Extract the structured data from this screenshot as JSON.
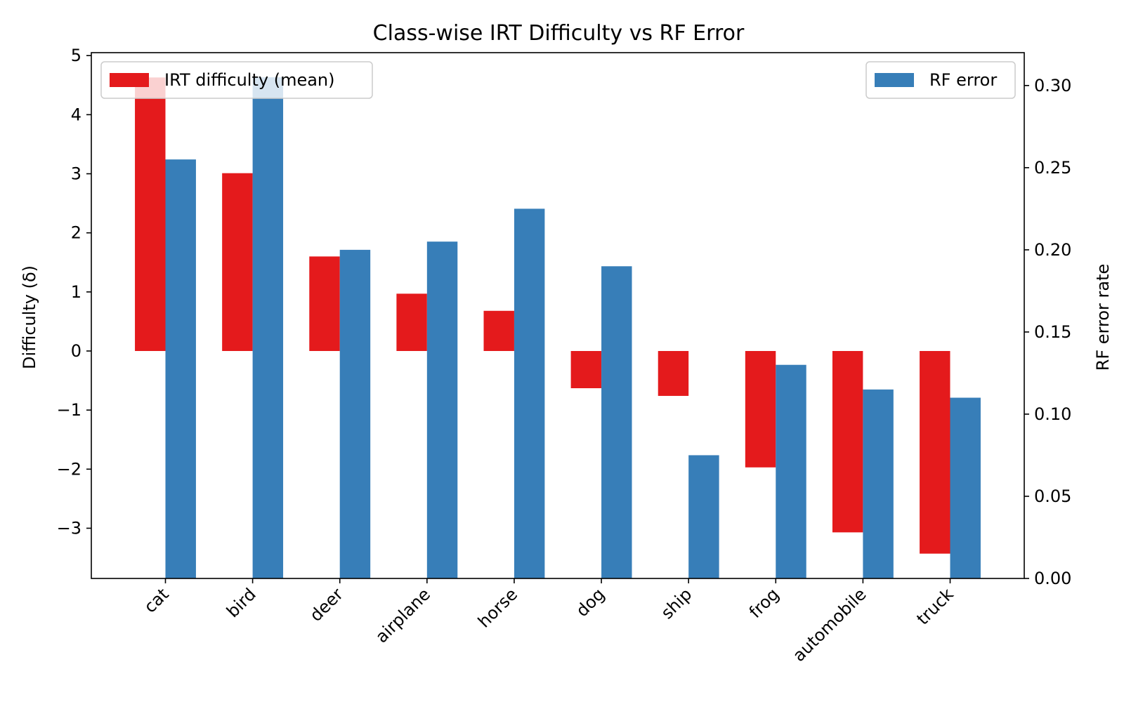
{
  "chart_data": {
    "type": "bar",
    "title": "Class-wise IRT Difficulty vs RF Error",
    "categories": [
      "cat",
      "bird",
      "deer",
      "airplane",
      "horse",
      "dog",
      "ship",
      "frog",
      "automobile",
      "truck"
    ],
    "series": [
      {
        "name": "IRT difficulty (mean)",
        "axis": "left",
        "color": "#e41a1c",
        "values": [
          4.63,
          3.01,
          1.6,
          0.97,
          0.68,
          -0.63,
          -0.76,
          -1.97,
          -3.07,
          -3.43
        ]
      },
      {
        "name": "RF error",
        "axis": "right",
        "color": "#377eb8",
        "values": [
          0.255,
          0.305,
          0.2,
          0.205,
          0.225,
          0.19,
          0.075,
          0.13,
          0.115,
          0.11
        ]
      }
    ],
    "left_axis": {
      "label": "Difficulty (δ)",
      "ylim": [
        -3.85,
        5.05
      ],
      "ticks": [
        5,
        4,
        3,
        2,
        1,
        0,
        -1,
        -2,
        -3
      ],
      "tick_labels": [
        "5",
        "4",
        "3",
        "2",
        "1",
        "0",
        "−1",
        "−2",
        "−3"
      ]
    },
    "right_axis": {
      "label": "RF error rate",
      "ylim": [
        0,
        0.32
      ],
      "ticks": [
        0.3,
        0.25,
        0.2,
        0.15,
        0.1,
        0.05,
        0.0
      ],
      "tick_labels": [
        "0.30",
        "0.25",
        "0.20",
        "0.15",
        "0.10",
        "0.05",
        "0.00"
      ]
    },
    "legends": [
      {
        "series": 0,
        "placement": "upper-left"
      },
      {
        "series": 1,
        "placement": "upper-right"
      }
    ],
    "grid": false
  }
}
